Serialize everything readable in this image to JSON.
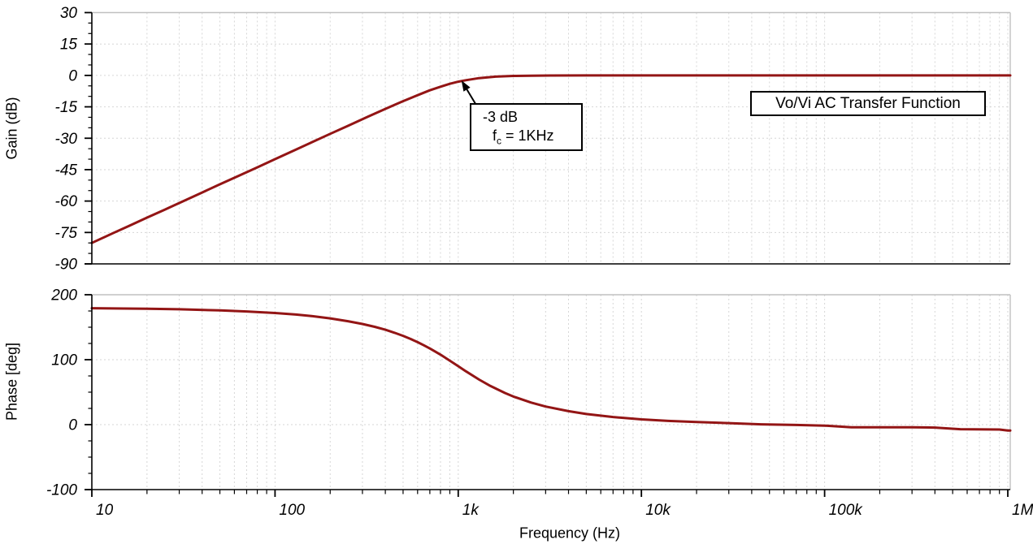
{
  "colors": {
    "curve": "#931515",
    "grid": "#d6d6d6",
    "border": "#c0c0c0",
    "axis": "#000000",
    "text": "#000000",
    "background": "#ffffff"
  },
  "title_box": {
    "label": "Vo/Vi AC Transfer Function"
  },
  "annotation": {
    "line1": "-3 dB",
    "fc_prefix": "f",
    "fc_sub": "c",
    "fc_rest": " = 1KHz",
    "target": {
      "frequency_hz": 1000,
      "gain_db": -3
    }
  },
  "x_axis": {
    "label": "Frequency (Hz)",
    "scale": "log",
    "ticks": [
      {
        "value": 10,
        "label": "10"
      },
      {
        "value": 100,
        "label": "100"
      },
      {
        "value": 1000,
        "label": "1k"
      },
      {
        "value": 10000,
        "label": "10k"
      },
      {
        "value": 100000,
        "label": "100k"
      },
      {
        "value": 1000000,
        "label": "1M"
      }
    ]
  },
  "chart_data": [
    {
      "type": "line",
      "title": "Vo/Vi AC Transfer Function",
      "xlabel": "Frequency (Hz)",
      "ylabel": "Gain (dB)",
      "x_scale": "log",
      "xlim": [
        10,
        1000000
      ],
      "ylim": [
        -90,
        30
      ],
      "y_major_ticks": [
        30,
        15,
        0,
        -15,
        -30,
        -45,
        -60,
        -75,
        -90
      ],
      "y_minor_step": 5,
      "grid": true,
      "legend": "none",
      "series": [
        {
          "name": "Gain",
          "color": "#931515",
          "points": [
            [
              10,
              -80
            ],
            [
              13,
              -75.4
            ],
            [
              16,
              -71.8
            ],
            [
              20,
              -67.9
            ],
            [
              25,
              -64.1
            ],
            [
              32,
              -59.8
            ],
            [
              40,
              -55.9
            ],
            [
              50,
              -52
            ],
            [
              63,
              -48
            ],
            [
              80,
              -43.9
            ],
            [
              100,
              -40
            ],
            [
              130,
              -35.4
            ],
            [
              160,
              -31.8
            ],
            [
              200,
              -27.9
            ],
            [
              250,
              -24.1
            ],
            [
              320,
              -19.8
            ],
            [
              400,
              -16
            ],
            [
              500,
              -12.3
            ],
            [
              630,
              -8.7
            ],
            [
              700,
              -7.1
            ],
            [
              800,
              -5.4
            ],
            [
              900,
              -4
            ],
            [
              1000,
              -3
            ],
            [
              1100,
              -2.3
            ],
            [
              1300,
              -1.3
            ],
            [
              1600,
              -0.6
            ],
            [
              2000,
              -0.26
            ],
            [
              2500,
              -0.11
            ],
            [
              3200,
              -0.04
            ],
            [
              5000,
              -0.01
            ],
            [
              10000,
              0
            ],
            [
              100000,
              0
            ],
            [
              1000000,
              0
            ]
          ]
        }
      ]
    },
    {
      "type": "line",
      "title": "",
      "xlabel": "Frequency (Hz)",
      "ylabel": "Phase [deg]",
      "x_scale": "log",
      "xlim": [
        10,
        1000000
      ],
      "ylim": [
        -100,
        200
      ],
      "y_major_ticks": [
        200,
        100,
        0,
        -100
      ],
      "y_minor_step": 25,
      "grid": true,
      "legend": "none",
      "series": [
        {
          "name": "Phase",
          "color": "#931515",
          "points": [
            [
              10,
              179.2
            ],
            [
              15,
              178.8
            ],
            [
              20,
              178.4
            ],
            [
              30,
              177.6
            ],
            [
              50,
              175.9
            ],
            [
              70,
              174.3
            ],
            [
              100,
              171.9
            ],
            [
              130,
              169.5
            ],
            [
              160,
              167
            ],
            [
              200,
              163.6
            ],
            [
              250,
              159.3
            ],
            [
              300,
              155
            ],
            [
              350,
              150.6
            ],
            [
              400,
              146.1
            ],
            [
              450,
              141.4
            ],
            [
              500,
              136.7
            ],
            [
              550,
              131.9
            ],
            [
              600,
              127
            ],
            [
              650,
              122.1
            ],
            [
              700,
              117.3
            ],
            [
              750,
              112.4
            ],
            [
              800,
              107.7
            ],
            [
              900,
              98.5
            ],
            [
              1000,
              90
            ],
            [
              1100,
              82.3
            ],
            [
              1300,
              69.4
            ],
            [
              1500,
              59.5
            ],
            [
              1800,
              48.7
            ],
            [
              2000,
              43.3
            ],
            [
              2500,
              34
            ],
            [
              3000,
              27.9
            ],
            [
              4000,
              20.7
            ],
            [
              5000,
              16.4
            ],
            [
              7000,
              11.7
            ],
            [
              10000,
              8.1
            ],
            [
              14000,
              5.8
            ],
            [
              20000,
              4
            ],
            [
              30000,
              2.4
            ],
            [
              45000,
              0.5
            ],
            [
              70000,
              -0.5
            ],
            [
              100000,
              -1.5
            ],
            [
              140000,
              -4
            ],
            [
              300000,
              -4
            ],
            [
              400000,
              -4.5
            ],
            [
              550000,
              -7
            ],
            [
              900000,
              -7.5
            ],
            [
              1000000,
              -9
            ]
          ]
        }
      ]
    }
  ]
}
